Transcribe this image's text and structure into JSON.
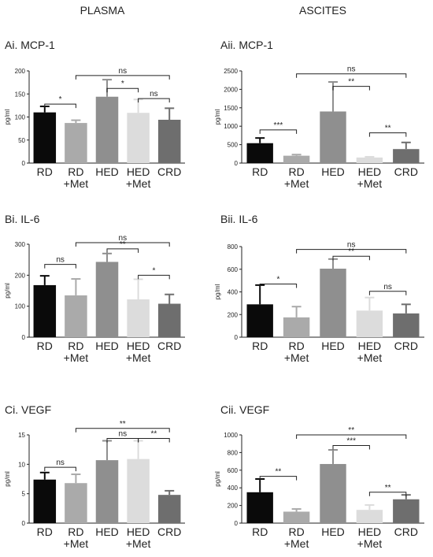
{
  "column_headers": [
    "PLASMA",
    "ASCITES"
  ],
  "colors": {
    "bars": [
      "#0a0a0a",
      "#aaaaaa",
      "#8f8f8f",
      "#dcdcdc",
      "#6e6e6e"
    ],
    "axis": "#222222",
    "text": "#222222"
  },
  "chart_data": [
    {
      "type": "bar",
      "title": "Ai. MCP-1",
      "ylabel": "pg/ml",
      "categories": [
        [
          "RD"
        ],
        [
          "RD",
          "+Met"
        ],
        [
          "HED"
        ],
        [
          "HED",
          "+Met"
        ],
        [
          "CRD"
        ]
      ],
      "values": [
        110,
        87,
        144,
        109,
        94
      ],
      "errors": [
        13,
        6,
        37,
        29,
        25
      ],
      "ylim": [
        0,
        200
      ],
      "yticks": [
        0,
        50,
        100,
        150,
        200
      ],
      "comparisons": [
        {
          "from": 0,
          "to": 1,
          "y": 128,
          "label": "*"
        },
        {
          "from": 1,
          "to": 4,
          "y": 190,
          "label": "ns"
        },
        {
          "from": 2,
          "to": 3,
          "y": 162,
          "label": "*"
        },
        {
          "from": 3,
          "to": 4,
          "y": 140,
          "label": "ns"
        }
      ]
    },
    {
      "type": "bar",
      "title": "Aii. MCP-1",
      "ylabel": "pg/ml",
      "categories": [
        [
          "RD"
        ],
        [
          "RD",
          "+Met"
        ],
        [
          "HED"
        ],
        [
          "HED",
          "+Met"
        ],
        [
          "CRD"
        ]
      ],
      "values": [
        540,
        200,
        1400,
        150,
        380
      ],
      "errors": [
        140,
        30,
        800,
        20,
        180
      ],
      "ylim": [
        0,
        2500
      ],
      "yticks": [
        0,
        500,
        1000,
        1500,
        2000,
        2500
      ],
      "comparisons": [
        {
          "from": 0,
          "to": 1,
          "y": 900,
          "label": "***"
        },
        {
          "from": 1,
          "to": 4,
          "y": 2420,
          "label": "ns"
        },
        {
          "from": 2,
          "to": 3,
          "y": 2080,
          "label": "**"
        },
        {
          "from": 3,
          "to": 4,
          "y": 820,
          "label": "**"
        }
      ]
    },
    {
      "type": "bar",
      "title": "Bi. IL-6",
      "ylabel": "pg/ml",
      "categories": [
        [
          "RD"
        ],
        [
          "RD",
          "+Met"
        ],
        [
          "HED"
        ],
        [
          "HED",
          "+Met"
        ],
        [
          "CRD"
        ]
      ],
      "values": [
        168,
        135,
        243,
        122,
        108
      ],
      "errors": [
        30,
        53,
        27,
        65,
        30
      ],
      "ylim": [
        0,
        300
      ],
      "yticks": [
        0,
        100,
        200,
        300
      ],
      "comparisons": [
        {
          "from": 0,
          "to": 1,
          "y": 235,
          "label": "ns"
        },
        {
          "from": 1,
          "to": 4,
          "y": 305,
          "label": "ns"
        },
        {
          "from": 2,
          "to": 3,
          "y": 285,
          "label": "**"
        },
        {
          "from": 3,
          "to": 4,
          "y": 200,
          "label": "*"
        }
      ]
    },
    {
      "type": "bar",
      "title": "Bii. IL-6",
      "ylabel": "pg/ml",
      "categories": [
        [
          "RD"
        ],
        [
          "RD",
          "+Met"
        ],
        [
          "HED"
        ],
        [
          "HED",
          "+Met"
        ],
        [
          "CRD"
        ]
      ],
      "values": [
        290,
        175,
        605,
        235,
        210
      ],
      "errors": [
        170,
        95,
        85,
        115,
        80
      ],
      "ylim": [
        0,
        800
      ],
      "yticks": [
        0,
        200,
        400,
        600,
        800
      ],
      "comparisons": [
        {
          "from": 0,
          "to": 1,
          "y": 470,
          "label": "*"
        },
        {
          "from": 1,
          "to": 4,
          "y": 775,
          "label": "ns"
        },
        {
          "from": 2,
          "to": 3,
          "y": 715,
          "label": "**"
        },
        {
          "from": 3,
          "to": 4,
          "y": 405,
          "label": "ns"
        }
      ]
    },
    {
      "type": "bar",
      "title": "Ci. VEGF",
      "ylabel": "pg/ml",
      "categories": [
        [
          "RD"
        ],
        [
          "RD",
          "+Met"
        ],
        [
          "HED"
        ],
        [
          "HED",
          "+Met"
        ],
        [
          "CRD"
        ]
      ],
      "values": [
        7.4,
        6.8,
        10.7,
        10.9,
        4.8
      ],
      "errors": [
        1.2,
        1.5,
        3.3,
        3.1,
        0.7
      ],
      "ylim": [
        0,
        15
      ],
      "yticks": [
        0,
        5,
        10,
        15
      ],
      "comparisons": [
        {
          "from": 0,
          "to": 1,
          "y": 9.5,
          "label": "ns"
        },
        {
          "from": 1,
          "to": 4,
          "y": 16.1,
          "label": "**"
        },
        {
          "from": 2,
          "to": 3,
          "y": 14.4,
          "label": "ns"
        },
        {
          "from": 3,
          "to": 4,
          "y": 14.4,
          "label": "**"
        }
      ]
    },
    {
      "type": "bar",
      "title": "Cii. VEGF",
      "ylabel": "pg/ml",
      "categories": [
        [
          "RD"
        ],
        [
          "RD",
          "+Met"
        ],
        [
          "HED"
        ],
        [
          "HED",
          "+Met"
        ],
        [
          "CRD"
        ]
      ],
      "values": [
        350,
        130,
        670,
        150,
        270
      ],
      "errors": [
        150,
        30,
        160,
        55,
        50
      ],
      "ylim": [
        0,
        1000
      ],
      "yticks": [
        0,
        200,
        400,
        600,
        800,
        1000
      ],
      "comparisons": [
        {
          "from": 0,
          "to": 1,
          "y": 530,
          "label": "**"
        },
        {
          "from": 1,
          "to": 4,
          "y": 1000,
          "label": "**"
        },
        {
          "from": 2,
          "to": 3,
          "y": 880,
          "label": "***"
        },
        {
          "from": 3,
          "to": 4,
          "y": 350,
          "label": "**"
        }
      ]
    }
  ]
}
